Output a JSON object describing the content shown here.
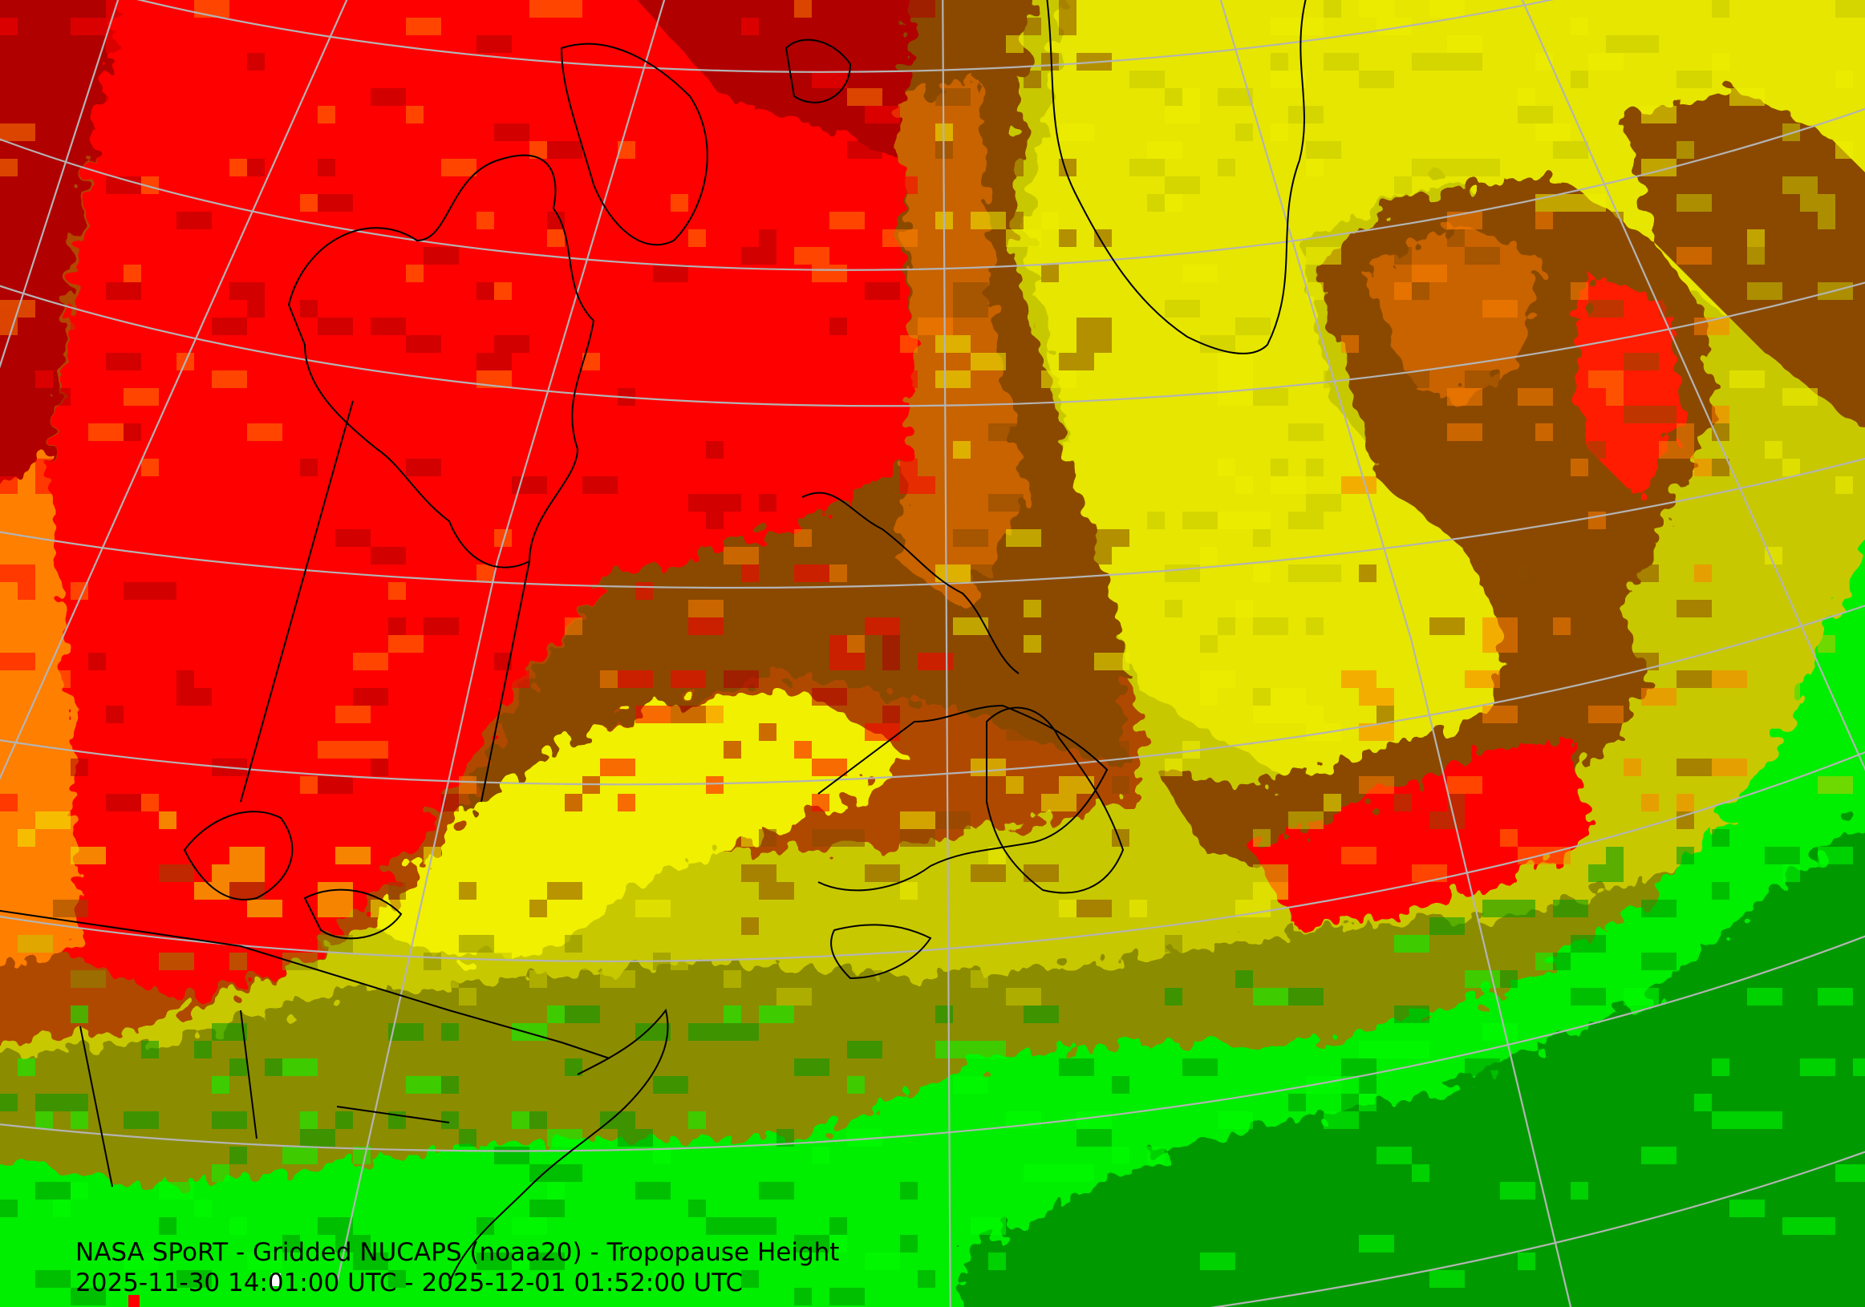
{
  "product": {
    "title": "NASA SPoRT - Gridded NUCAPS (noaa20) - Tropopause Height",
    "time_range": "2025-11-30 14:01:00 UTC - 2025-12-01 01:52:00 UTC"
  },
  "map": {
    "projection": "polar-stereographic",
    "field": "tropopause height",
    "palette": {
      "dark_red": "#b00000",
      "red": "#ff0000",
      "orange": "#ff7f00",
      "brown": "#8b4a00",
      "yellow": "#f0f000",
      "olive_yellow": "#c8c800",
      "olive": "#8c8c00",
      "green": "#00ff00",
      "dark_green": "#009a00"
    },
    "graticule_color": "#b4b4b4",
    "coastline_color": "#000000"
  }
}
